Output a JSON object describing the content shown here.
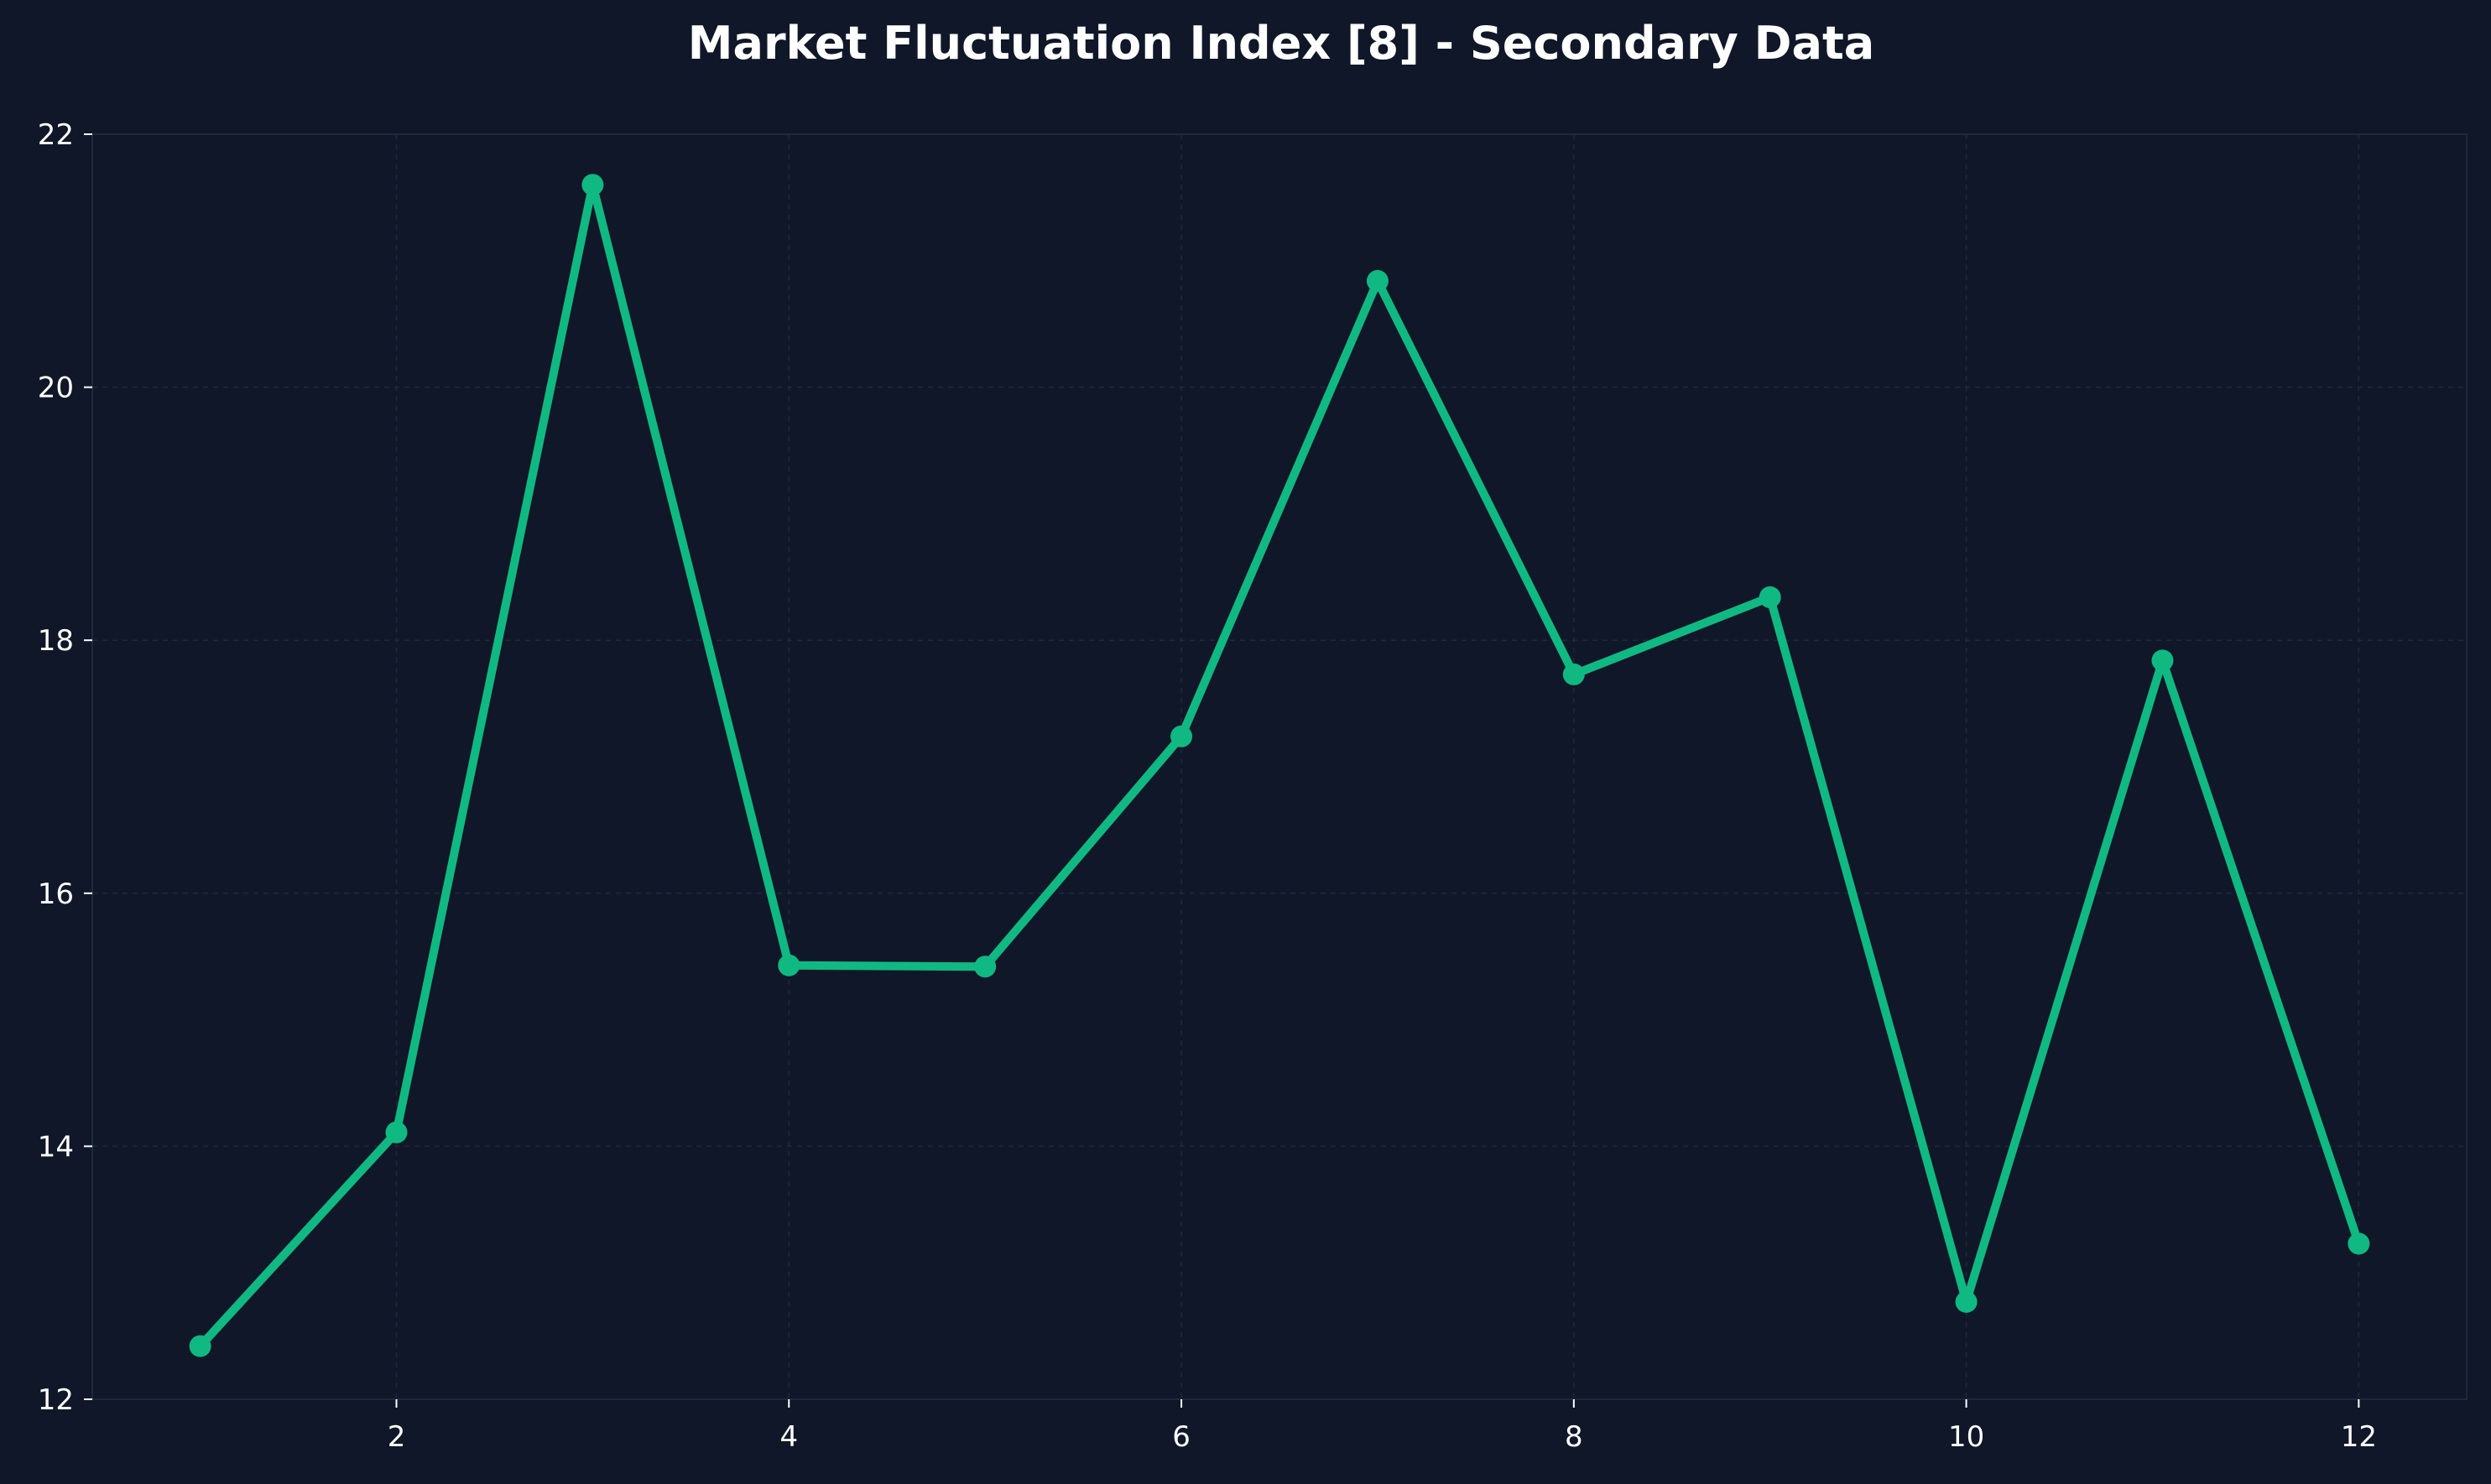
{
  "chart_data": {
    "type": "line",
    "title": "Market Fluctuation Index [8] - Secondary Data",
    "xlabel": "",
    "ylabel": "",
    "x": [
      1,
      2,
      3,
      4,
      5,
      6,
      7,
      8,
      9,
      10,
      11,
      12
    ],
    "series": [
      {
        "values": [
          12.42,
          14.11,
          21.6,
          15.43,
          15.42,
          17.24,
          20.84,
          17.73,
          18.34,
          12.77,
          17.84,
          13.23
        ]
      }
    ],
    "xlim": [
      0.45,
      12.55
    ],
    "ylim": [
      12,
      22
    ],
    "xticks": [
      2,
      4,
      6,
      8,
      10,
      12
    ],
    "yticks": [
      12,
      14,
      16,
      18,
      20,
      22
    ],
    "grid": true,
    "legend": "none",
    "colors": {
      "background": "#0f1729",
      "line": "#10b981",
      "text": "#ffffff",
      "grid": "#1e293b"
    }
  }
}
